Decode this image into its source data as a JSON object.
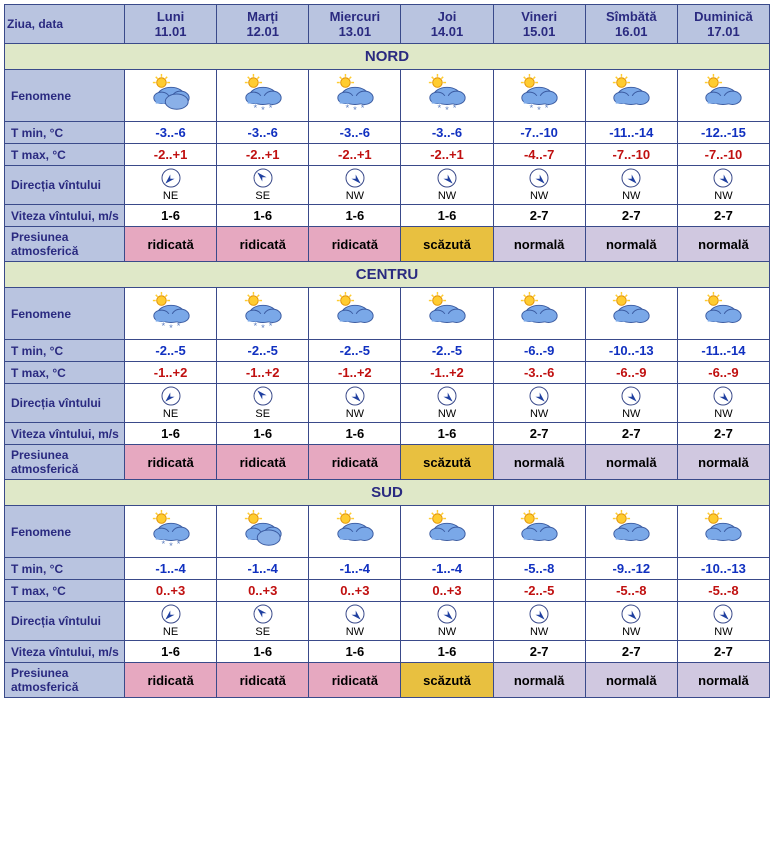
{
  "labels": {
    "ziua": "Ziua, data",
    "fenomene": "Fenomene",
    "tmin": "T min, °C",
    "tmax": "T max, °C",
    "dir": "Direcția vîntului",
    "speed": "Viteza vîntului, m/s",
    "press": "Presiunea atmosferică"
  },
  "days": [
    {
      "name": "Luni",
      "date": "11.01"
    },
    {
      "name": "Marți",
      "date": "12.01"
    },
    {
      "name": "Miercuri",
      "date": "13.01"
    },
    {
      "name": "Joi",
      "date": "14.01"
    },
    {
      "name": "Vineri",
      "date": "15.01"
    },
    {
      "name": "Sîmbătă",
      "date": "16.01"
    },
    {
      "name": "Duminică",
      "date": "17.01"
    }
  ],
  "pressure_values": {
    "rid": "ridicată",
    "sca": "scăzută",
    "nor": "normală"
  },
  "pressure_colors": {
    "rid": "#e6a8c0",
    "sca": "#e8c040",
    "nor": "#d0c8e0"
  },
  "colors": {
    "label_bg": "#b9c4e0",
    "region_bg": "#dfe8c8",
    "border": "#3a4a8a",
    "text_blue": "#2a2a80",
    "tmin": "#1030c0",
    "tmax": "#c01010"
  },
  "wind_angles": {
    "NE": 225,
    "SE": 315,
    "NW": 135,
    "SW": 45,
    "N": 180,
    "S": 0,
    "E": 270,
    "W": 90
  },
  "regions": [
    {
      "name": "NORD",
      "rows": {
        "icon": [
          "cloudy",
          "snow",
          "snow",
          "snow",
          "snow",
          "suncloud",
          "suncloud"
        ],
        "tmin": [
          "-3..-6",
          "-3..-6",
          "-3..-6",
          "-3..-6",
          "-7..-10",
          "-11..-14",
          "-12..-15"
        ],
        "tmax": [
          "-2..+1",
          "-2..+1",
          "-2..+1",
          "-2..+1",
          "-4..-7",
          "-7..-10",
          "-7..-10"
        ],
        "dir": [
          "NE",
          "SE",
          "NW",
          "NW",
          "NW",
          "NW",
          "NW"
        ],
        "speed": [
          "1-6",
          "1-6",
          "1-6",
          "1-6",
          "2-7",
          "2-7",
          "2-7"
        ],
        "press": [
          "rid",
          "rid",
          "rid",
          "sca",
          "nor",
          "nor",
          "nor"
        ]
      }
    },
    {
      "name": "CENTRU",
      "rows": {
        "icon": [
          "snow",
          "snow",
          "suncloud",
          "suncloud",
          "suncloud",
          "suncloud",
          "suncloud"
        ],
        "tmin": [
          "-2..-5",
          "-2..-5",
          "-2..-5",
          "-2..-5",
          "-6..-9",
          "-10..-13",
          "-11..-14"
        ],
        "tmax": [
          "-1..+2",
          "-1..+2",
          "-1..+2",
          "-1..+2",
          "-3..-6",
          "-6..-9",
          "-6..-9"
        ],
        "dir": [
          "NE",
          "SE",
          "NW",
          "NW",
          "NW",
          "NW",
          "NW"
        ],
        "speed": [
          "1-6",
          "1-6",
          "1-6",
          "1-6",
          "2-7",
          "2-7",
          "2-7"
        ],
        "press": [
          "rid",
          "rid",
          "rid",
          "sca",
          "nor",
          "nor",
          "nor"
        ]
      }
    },
    {
      "name": "SUD",
      "rows": {
        "icon": [
          "snow",
          "cloudy",
          "suncloud",
          "suncloud",
          "suncloud",
          "suncloud",
          "suncloud"
        ],
        "tmin": [
          "-1..-4",
          "-1..-4",
          "-1..-4",
          "-1..-4",
          "-5..-8",
          "-9..-12",
          "-10..-13"
        ],
        "tmax": [
          "0..+3",
          "0..+3",
          "0..+3",
          "0..+3",
          "-2..-5",
          "-5..-8",
          "-5..-8"
        ],
        "dir": [
          "NE",
          "SE",
          "NW",
          "NW",
          "NW",
          "NW",
          "NW"
        ],
        "speed": [
          "1-6",
          "1-6",
          "1-6",
          "1-6",
          "2-7",
          "2-7",
          "2-7"
        ],
        "press": [
          "rid",
          "rid",
          "rid",
          "sca",
          "nor",
          "nor",
          "nor"
        ]
      }
    }
  ]
}
